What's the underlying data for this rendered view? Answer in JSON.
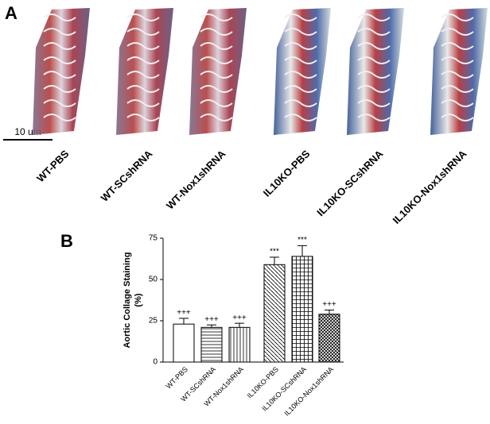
{
  "panel_a": {
    "label": "A",
    "scale_bar": "10 um",
    "images": [
      "WT-PBS",
      "WT-SCshRNA",
      "WT-Nox1shRNA",
      "IL10KO-PBS",
      "IL10KO-SCshRNA",
      "IL10KO-Nox1shRNA"
    ]
  },
  "panel_b": {
    "label": "B"
  },
  "chart_data": {
    "type": "bar",
    "y_label": [
      "Aortic Collage Staining",
      "(%)"
    ],
    "categories": [
      "WT-PBS",
      "WT-SCshRNA",
      "WT-Nox1shRNA",
      "IL10KO-PBS",
      "IL10KO-SCshRNA",
      "IL10KO-Nox1shRNA"
    ],
    "values": [
      23,
      21,
      21,
      59,
      64,
      29
    ],
    "errors": [
      3.5,
      1.5,
      2.5,
      4.5,
      6.5,
      2.5
    ],
    "annotations": [
      "+++",
      "+++",
      "+++",
      "***",
      "***",
      "+++"
    ],
    "color": "#000000",
    "ylim": [
      0,
      75
    ],
    "yticks": [
      0,
      25,
      50,
      75
    ]
  }
}
